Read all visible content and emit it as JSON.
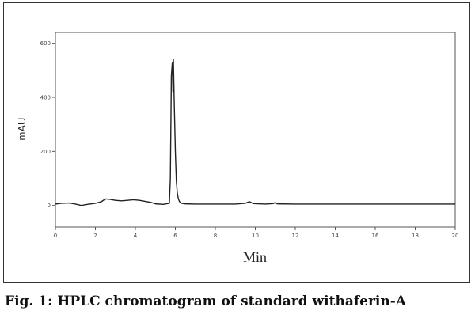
{
  "caption": "Fig. 1: HPLC chromatogram of standard withaferin-A",
  "chart_data": {
    "type": "line",
    "title": "",
    "xlabel": "Min",
    "ylabel": "mAU",
    "xlim": [
      0,
      20
    ],
    "ylim": [
      -80,
      640
    ],
    "x_ticks": [
      0,
      2,
      4,
      6,
      8,
      10,
      12,
      14,
      16,
      18,
      20
    ],
    "y_ticks": [
      0,
      200,
      400,
      600
    ],
    "x_tick_labels": [
      "0",
      "2",
      "4",
      "6",
      "8",
      "10",
      "12",
      "14",
      "16",
      "18",
      "20"
    ],
    "y_tick_labels": [
      "0",
      "200",
      "400",
      "600"
    ],
    "grid": false,
    "series": [
      {
        "color": "#222222",
        "x": [
          0,
          0.3,
          0.7,
          1.0,
          1.3,
          1.6,
          2.0,
          2.3,
          2.5,
          2.7,
          3.0,
          3.3,
          3.6,
          3.9,
          4.2,
          4.5,
          4.8,
          5.0,
          5.4,
          5.7,
          5.75,
          5.8,
          5.85,
          5.88,
          5.9,
          5.95,
          6.0,
          6.05,
          6.1,
          6.15,
          6.2,
          6.3,
          6.5,
          7.0,
          8.0,
          9.0,
          9.5,
          9.7,
          9.9,
          10.5,
          10.9,
          11.0,
          11.1,
          12.0,
          14.0,
          16.0,
          18.0,
          20.0
        ],
        "y": [
          5,
          8,
          9,
          5,
          0,
          4,
          8,
          14,
          24,
          23,
          19,
          17,
          19,
          21,
          19,
          15,
          11,
          6,
          4,
          8,
          100,
          480,
          530,
          420,
          540,
          360,
          200,
          90,
          45,
          25,
          15,
          8,
          6,
          5,
          5,
          5,
          8,
          14,
          7,
          5,
          7,
          11,
          6,
          5,
          5,
          5,
          5,
          5
        ]
      }
    ]
  }
}
